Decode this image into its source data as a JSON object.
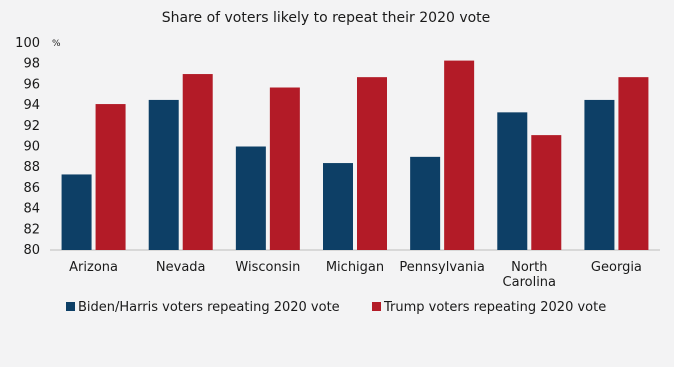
{
  "chart_data": {
    "type": "bar",
    "title": "Share of voters likely to repeat their 2020 vote",
    "unit_label": "%",
    "categories": [
      "Arizona",
      "Nevada",
      "Wisconsin",
      "Michigan",
      "Pennsylvania",
      "North Carolina",
      "Georgia"
    ],
    "category_lines": [
      [
        "Arizona"
      ],
      [
        "Nevada"
      ],
      [
        "Wisconsin"
      ],
      [
        "Michigan"
      ],
      [
        "Pennsylvania"
      ],
      [
        "North",
        "Carolina"
      ],
      [
        "Georgia"
      ]
    ],
    "series": [
      {
        "name": "Biden/Harris voters repeating 2020 vote",
        "color": "#0d3f66",
        "values": [
          87.3,
          94.5,
          90.0,
          88.4,
          89.0,
          93.3,
          94.5
        ]
      },
      {
        "name": "Trump voters repeating 2020 vote",
        "color": "#b31b27",
        "values": [
          94.1,
          97.0,
          95.7,
          96.7,
          98.3,
          91.1,
          96.7
        ]
      }
    ],
    "ylim": [
      80,
      100
    ],
    "yticks": [
      80,
      82,
      84,
      86,
      88,
      90,
      92,
      94,
      96,
      98,
      100
    ],
    "grid": false,
    "legend_position": "bottom-left"
  }
}
